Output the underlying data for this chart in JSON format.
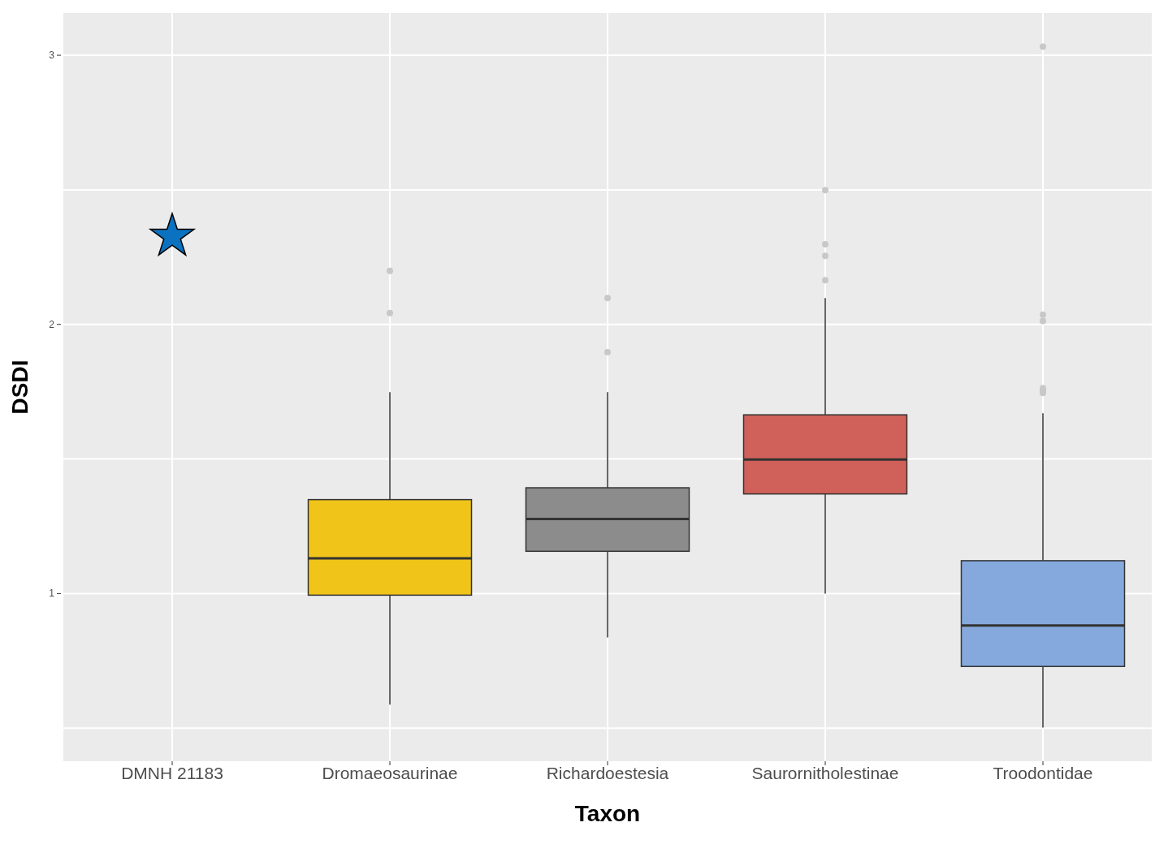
{
  "chart_data": {
    "type": "box",
    "xlabel": "Taxon",
    "ylabel": "DSDI",
    "categories": [
      "DMNH 21183",
      "Dromaeosaurinae",
      "Richardoestesia",
      "Saurornitholestinae",
      "Troodontidae"
    ],
    "ylim": [
      0.377,
      3.157
    ],
    "yticks": [
      {
        "value": 0.5,
        "label": null
      },
      1,
      {
        "value": 1.5,
        "label": null
      },
      2,
      {
        "value": 2.5,
        "label": null
      },
      3
    ],
    "grid": true,
    "series": [
      {
        "colors": [
          null,
          "#f0c419",
          "#8c8c8c",
          "#d0605a",
          "#85a9dc"
        ],
        "boxes": [
          null,
          {
            "low": 0.587,
            "q1": 0.994,
            "median": 1.131,
            "q3": 1.349,
            "high": 1.748,
            "outliers": [
              2.199,
              2.042
            ]
          },
          {
            "low": 0.837,
            "q1": 1.157,
            "median": 1.277,
            "q3": 1.393,
            "high": 1.748,
            "outliers": [
              2.098,
              1.897
            ]
          },
          {
            "low": 1.0,
            "q1": 1.37,
            "median": 1.498,
            "q3": 1.664,
            "high": 2.098,
            "outliers": [
              2.499,
              2.298,
              2.255,
              2.164
            ]
          },
          {
            "low": 0.502,
            "q1": 0.729,
            "median": 0.881,
            "q3": 1.122,
            "high": 1.67,
            "outliers": [
              3.032,
              2.036,
              2.013,
              1.763,
              1.754,
              1.745
            ]
          }
        ]
      },
      {
        "type": "scatter",
        "x": [
          "DMNH 21183"
        ],
        "values": [
          2.327
        ],
        "color": "#0a72c0",
        "marker": "star"
      }
    ]
  }
}
